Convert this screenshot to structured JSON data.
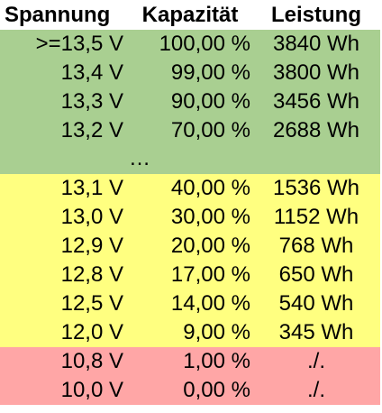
{
  "table": {
    "header": [
      "Spannung",
      "Kapazität",
      "Leistung"
    ],
    "groups": [
      {
        "color": "#a9cf91",
        "rows": [
          [
            ">=13,5 V",
            "100,00 %",
            "3840 Wh"
          ],
          [
            "13,4 V",
            "99,00 %",
            "3800 Wh"
          ],
          [
            "13,3 V",
            "90,00 %",
            "3456 Wh"
          ],
          [
            "13,2 V",
            "70,00 %",
            "2688 Wh"
          ],
          [
            "…"
          ]
        ]
      },
      {
        "color": "#ffff80",
        "rows": [
          [
            "13,1 V",
            "40,00 %",
            "1536 Wh"
          ],
          [
            "13,0 V",
            "30,00 %",
            "1152 Wh"
          ],
          [
            "12,9 V",
            "20,00 %",
            "768 Wh"
          ],
          [
            "12,8 V",
            "17,00 %",
            "650 Wh"
          ],
          [
            "12,5 V",
            "14,00 %",
            "540 Wh"
          ],
          [
            "12,0 V",
            "9,00 %",
            "345 Wh"
          ]
        ]
      },
      {
        "color": "#ffa6a6",
        "rows": [
          [
            "10,8 V",
            "1,00 %",
            "./."
          ],
          [
            "10,0 V",
            "0,00 %",
            "./."
          ]
        ]
      }
    ]
  }
}
